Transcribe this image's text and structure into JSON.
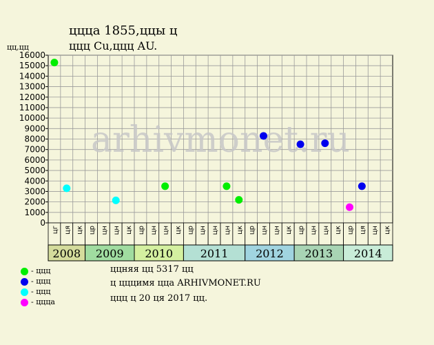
{
  "title_line1": "цццa 1855,ццы ц",
  "title_line2": "ццц Cu,ццц AU.",
  "ylabel": "цц,цц",
  "watermark": "arhivmonet.ru",
  "colors": {
    "background": "#f5f5dc",
    "plot_bg": "#f5f5dc",
    "green": "#00ee00",
    "blue": "#0000ee",
    "cyan": "#00ffff",
    "magenta": "#ff00ff",
    "watermark": "#c8c8c8"
  },
  "legend": [
    {
      "label": "- ццц",
      "color": "#00ee00"
    },
    {
      "label": "- ццц",
      "color": "#0000ee"
    },
    {
      "label": "- ццц",
      "color": "#00ffff"
    },
    {
      "label": "- цццa",
      "color": "#ff00ff"
    }
  ],
  "notes": [
    "ццняя цц 5317 цц",
    "ц цццимя ццa ARHIVMONET.RU",
    "ццц ц 20 ця 2017 цц."
  ],
  "chart_data": {
    "type": "scatter",
    "title": "цццa 1855,ццы ц ццц Cu,ццц AU.",
    "ylabel": "цц,цц",
    "ylim": [
      0,
      16000
    ],
    "yticks": [
      0,
      1000,
      2000,
      3000,
      4000,
      5000,
      6000,
      7000,
      8000,
      9000,
      10000,
      11000,
      12000,
      13000,
      14000,
      15000,
      16000
    ],
    "grid": true,
    "years": [
      {
        "label": "2008",
        "color": "#d4dc9c",
        "months": [
          "цг",
          "ця",
          "цк"
        ]
      },
      {
        "label": "2009",
        "color": "#a0dca0",
        "months": [
          "цр",
          "цн",
          "цн",
          "цк"
        ]
      },
      {
        "label": "2010",
        "color": "#d4f0a0",
        "months": [
          "цр",
          "цн",
          "цн",
          "цк"
        ]
      },
      {
        "label": "2011",
        "color": "#b4e0d4",
        "months": [
          "цр",
          "цн",
          "цн",
          "цн",
          "цк"
        ]
      },
      {
        "label": "2012",
        "color": "#a0d4e0",
        "months": [
          "цр",
          "цн",
          "цн",
          "цк"
        ]
      },
      {
        "label": "2013",
        "color": "#a8d4b4",
        "months": [
          "цр",
          "цн",
          "цн",
          "цк"
        ]
      },
      {
        "label": "2014",
        "color": "#c8ecd8",
        "months": [
          "цр",
          "ця",
          "цн",
          "цк"
        ]
      }
    ],
    "points": [
      {
        "slot": 0,
        "value": 15300,
        "grade": "green"
      },
      {
        "slot": 1,
        "value": 3300,
        "grade": "cyan"
      },
      {
        "slot": 5,
        "value": 2150,
        "grade": "cyan"
      },
      {
        "slot": 9,
        "value": 3500,
        "grade": "green"
      },
      {
        "slot": 14,
        "value": 3500,
        "grade": "green"
      },
      {
        "slot": 15,
        "value": 2200,
        "grade": "green"
      },
      {
        "slot": 17,
        "value": 8300,
        "grade": "blue"
      },
      {
        "slot": 20,
        "value": 7500,
        "grade": "blue"
      },
      {
        "slot": 22,
        "value": 7600,
        "grade": "blue"
      },
      {
        "slot": 24,
        "value": 1500,
        "grade": "magenta"
      },
      {
        "slot": 25,
        "value": 3500,
        "grade": "blue"
      }
    ]
  }
}
